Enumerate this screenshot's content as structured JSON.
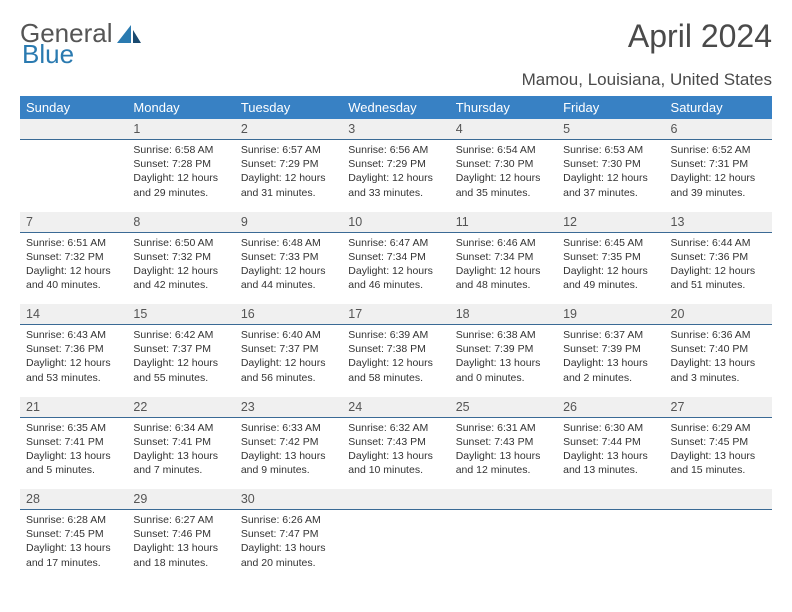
{
  "logo": {
    "text1": "General",
    "text2": "Blue"
  },
  "title": "April 2024",
  "location": "Mamou, Louisiana, United States",
  "colors": {
    "header_bg": "#3881c4",
    "header_text": "#ffffff",
    "daynum_bg": "#f0f0f0",
    "daynum_border": "#3a6a95",
    "body_bg": "#ffffff",
    "text": "#333333",
    "logo_gray": "#555555",
    "logo_blue": "#2a7ab0"
  },
  "weekdays": [
    "Sunday",
    "Monday",
    "Tuesday",
    "Wednesday",
    "Thursday",
    "Friday",
    "Saturday"
  ],
  "weeks": [
    {
      "nums": [
        "",
        "1",
        "2",
        "3",
        "4",
        "5",
        "6"
      ],
      "cells": [
        null,
        {
          "sunrise": "6:58 AM",
          "sunset": "7:28 PM",
          "daylight": "12 hours and 29 minutes."
        },
        {
          "sunrise": "6:57 AM",
          "sunset": "7:29 PM",
          "daylight": "12 hours and 31 minutes."
        },
        {
          "sunrise": "6:56 AM",
          "sunset": "7:29 PM",
          "daylight": "12 hours and 33 minutes."
        },
        {
          "sunrise": "6:54 AM",
          "sunset": "7:30 PM",
          "daylight": "12 hours and 35 minutes."
        },
        {
          "sunrise": "6:53 AM",
          "sunset": "7:30 PM",
          "daylight": "12 hours and 37 minutes."
        },
        {
          "sunrise": "6:52 AM",
          "sunset": "7:31 PM",
          "daylight": "12 hours and 39 minutes."
        }
      ]
    },
    {
      "nums": [
        "7",
        "8",
        "9",
        "10",
        "11",
        "12",
        "13"
      ],
      "cells": [
        {
          "sunrise": "6:51 AM",
          "sunset": "7:32 PM",
          "daylight": "12 hours and 40 minutes."
        },
        {
          "sunrise": "6:50 AM",
          "sunset": "7:32 PM",
          "daylight": "12 hours and 42 minutes."
        },
        {
          "sunrise": "6:48 AM",
          "sunset": "7:33 PM",
          "daylight": "12 hours and 44 minutes."
        },
        {
          "sunrise": "6:47 AM",
          "sunset": "7:34 PM",
          "daylight": "12 hours and 46 minutes."
        },
        {
          "sunrise": "6:46 AM",
          "sunset": "7:34 PM",
          "daylight": "12 hours and 48 minutes."
        },
        {
          "sunrise": "6:45 AM",
          "sunset": "7:35 PM",
          "daylight": "12 hours and 49 minutes."
        },
        {
          "sunrise": "6:44 AM",
          "sunset": "7:36 PM",
          "daylight": "12 hours and 51 minutes."
        }
      ]
    },
    {
      "nums": [
        "14",
        "15",
        "16",
        "17",
        "18",
        "19",
        "20"
      ],
      "cells": [
        {
          "sunrise": "6:43 AM",
          "sunset": "7:36 PM",
          "daylight": "12 hours and 53 minutes."
        },
        {
          "sunrise": "6:42 AM",
          "sunset": "7:37 PM",
          "daylight": "12 hours and 55 minutes."
        },
        {
          "sunrise": "6:40 AM",
          "sunset": "7:37 PM",
          "daylight": "12 hours and 56 minutes."
        },
        {
          "sunrise": "6:39 AM",
          "sunset": "7:38 PM",
          "daylight": "12 hours and 58 minutes."
        },
        {
          "sunrise": "6:38 AM",
          "sunset": "7:39 PM",
          "daylight": "13 hours and 0 minutes."
        },
        {
          "sunrise": "6:37 AM",
          "sunset": "7:39 PM",
          "daylight": "13 hours and 2 minutes."
        },
        {
          "sunrise": "6:36 AM",
          "sunset": "7:40 PM",
          "daylight": "13 hours and 3 minutes."
        }
      ]
    },
    {
      "nums": [
        "21",
        "22",
        "23",
        "24",
        "25",
        "26",
        "27"
      ],
      "cells": [
        {
          "sunrise": "6:35 AM",
          "sunset": "7:41 PM",
          "daylight": "13 hours and 5 minutes."
        },
        {
          "sunrise": "6:34 AM",
          "sunset": "7:41 PM",
          "daylight": "13 hours and 7 minutes."
        },
        {
          "sunrise": "6:33 AM",
          "sunset": "7:42 PM",
          "daylight": "13 hours and 9 minutes."
        },
        {
          "sunrise": "6:32 AM",
          "sunset": "7:43 PM",
          "daylight": "13 hours and 10 minutes."
        },
        {
          "sunrise": "6:31 AM",
          "sunset": "7:43 PM",
          "daylight": "13 hours and 12 minutes."
        },
        {
          "sunrise": "6:30 AM",
          "sunset": "7:44 PM",
          "daylight": "13 hours and 13 minutes."
        },
        {
          "sunrise": "6:29 AM",
          "sunset": "7:45 PM",
          "daylight": "13 hours and 15 minutes."
        }
      ]
    },
    {
      "nums": [
        "28",
        "29",
        "30",
        "",
        "",
        "",
        ""
      ],
      "cells": [
        {
          "sunrise": "6:28 AM",
          "sunset": "7:45 PM",
          "daylight": "13 hours and 17 minutes."
        },
        {
          "sunrise": "6:27 AM",
          "sunset": "7:46 PM",
          "daylight": "13 hours and 18 minutes."
        },
        {
          "sunrise": "6:26 AM",
          "sunset": "7:47 PM",
          "daylight": "13 hours and 20 minutes."
        },
        null,
        null,
        null,
        null
      ]
    }
  ],
  "labels": {
    "sunrise": "Sunrise:",
    "sunset": "Sunset:",
    "daylight": "Daylight:"
  }
}
